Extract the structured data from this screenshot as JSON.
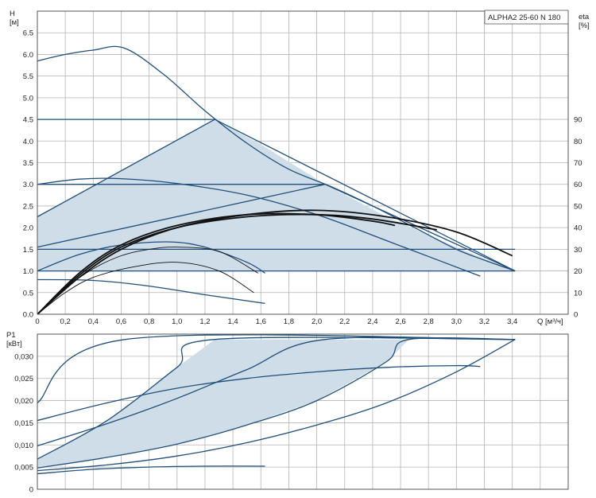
{
  "chart_data": [
    {
      "type": "line",
      "title_box": "ALPHA2 25-60 N 180",
      "ylabel_top": "H",
      "yunit": "[м]",
      "ylabel_right_top": "eta",
      "yunit_right": "[%]",
      "xlabel": "Q [м³/ч]",
      "xlim": [
        0,
        3.8
      ],
      "ylim": [
        0,
        7.0
      ],
      "y2lim": [
        0,
        140
      ],
      "x_ticks": [
        "0",
        "0,2",
        "0,4",
        "0,6",
        "0,8",
        "1,0",
        "1,2",
        "1,4",
        "1,6",
        "1,8",
        "2,0",
        "2,2",
        "2,4",
        "2,6",
        "2,8",
        "3,0",
        "3,2",
        "3,4"
      ],
      "y_ticks": [
        "0.0",
        "0.5",
        "1.0",
        "1.5",
        "2.0",
        "2.5",
        "3.0",
        "3.5",
        "4.0",
        "4.5",
        "5.0",
        "5.5",
        "6.0",
        "6.5"
      ],
      "y2_ticks": [
        "0",
        "10",
        "20",
        "30",
        "40",
        "50",
        "60",
        "70",
        "80",
        "90"
      ],
      "series": [
        {
          "role": "max-curve",
          "x": [
            0,
            0.2,
            0.4,
            0.62,
            0.9,
            1.2,
            1.5,
            1.8,
            2.1,
            2.4,
            2.7,
            3.0,
            3.2,
            3.42
          ],
          "y": [
            5.85,
            6.0,
            6.1,
            6.15,
            5.55,
            4.7,
            3.95,
            3.35,
            2.95,
            2.5,
            2.0,
            1.5,
            1.25,
            1.0
          ]
        },
        {
          "role": "constant-pressure",
          "x": [
            0,
            1.27
          ],
          "y": [
            4.5,
            4.5
          ]
        },
        {
          "role": "constant-pressure",
          "x": [
            0,
            2.06
          ],
          "y": [
            3.0,
            3.0
          ]
        },
        {
          "role": "constant-pressure",
          "x": [
            0,
            3.42
          ],
          "y": [
            1.5,
            1.5
          ]
        },
        {
          "role": "proportional-pressure",
          "x": [
            0,
            1.27,
            3.42
          ],
          "y": [
            2.25,
            4.5,
            1.0
          ]
        },
        {
          "role": "proportional-pressure",
          "x": [
            0,
            2.06,
            3.42
          ],
          "y": [
            1.55,
            3.0,
            1.0
          ]
        },
        {
          "role": "proportional-pressure",
          "x": [
            0,
            3.42
          ],
          "y": [
            1.0,
            1.0
          ]
        },
        {
          "role": "speed-curve",
          "x": [
            0,
            0.3,
            0.6,
            1.0,
            1.5,
            2.0,
            2.5,
            3.17
          ],
          "y": [
            3.0,
            3.12,
            3.13,
            3.02,
            2.75,
            2.3,
            1.7,
            0.88
          ]
        },
        {
          "role": "speed-curve",
          "x": [
            0,
            0.3,
            0.6,
            0.95,
            1.2,
            1.5,
            1.63
          ],
          "y": [
            1.0,
            1.38,
            1.6,
            1.67,
            1.55,
            1.2,
            0.95
          ]
        },
        {
          "role": "speed-curve",
          "x": [
            0,
            0.4,
            0.8,
            1.2,
            1.63
          ],
          "y": [
            0.8,
            0.78,
            0.65,
            0.45,
            0.25
          ]
        },
        {
          "role": "efficiency",
          "x": [
            0,
            0.3,
            0.6,
            1.0,
            1.5,
            2.0,
            2.5,
            3.0,
            3.4
          ],
          "y": [
            0,
            17,
            30,
            40,
            46,
            48,
            45,
            38,
            27
          ]
        },
        {
          "role": "efficiency",
          "x": [
            0,
            0.3,
            0.6,
            1.0,
            1.5,
            2.0,
            2.4,
            2.86
          ],
          "y": [
            0,
            18,
            31,
            40,
            45,
            46,
            44,
            39
          ]
        },
        {
          "role": "efficiency",
          "x": [
            0,
            0.3,
            0.6,
            1.0,
            1.5,
            2.0,
            2.4,
            2.56
          ],
          "y": [
            0,
            19,
            32,
            41,
            46,
            46,
            43,
            41
          ]
        },
        {
          "role": "efficiency",
          "x": [
            0,
            0.2,
            0.4,
            0.6,
            0.8,
            1.0,
            1.3,
            1.58
          ],
          "y": [
            0,
            12,
            21,
            27,
            30,
            31,
            29,
            19
          ]
        },
        {
          "role": "efficiency",
          "x": [
            0,
            0.2,
            0.4,
            0.7,
            1.0,
            1.3,
            1.55
          ],
          "y": [
            0,
            10,
            17,
            22,
            24,
            20,
            10
          ]
        }
      ]
    },
    {
      "type": "line",
      "ylabel_top": "P1",
      "yunit": "[кВт]",
      "xlim": [
        0,
        3.8
      ],
      "ylim": [
        0,
        0.035
      ],
      "y_ticks": [
        "0",
        "0,005",
        "0,010",
        "0,015",
        "0,020",
        "0,025",
        "0,030"
      ],
      "series": [
        {
          "role": "max-curve",
          "x": [
            0,
            0.63,
            3.42
          ],
          "y": [
            0.0195,
            0.0338,
            0.0338
          ]
        },
        {
          "role": "speed-curve",
          "x": [
            0,
            0.5,
            1.0,
            1.5,
            2.0,
            2.5,
            3.0,
            3.17
          ],
          "y": [
            0.0155,
            0.0195,
            0.0228,
            0.025,
            0.0265,
            0.0275,
            0.0279,
            0.0277
          ]
        },
        {
          "role": "pressure-curve",
          "x": [
            0,
            0.5,
            1.0,
            1.27,
            3.42
          ],
          "y": [
            0.0068,
            0.0155,
            0.0275,
            0.0338,
            0.0338
          ]
        },
        {
          "role": "pressure-curve",
          "x": [
            0,
            0.5,
            1.0,
            1.5,
            2.06,
            3.42
          ],
          "y": [
            0.0098,
            0.0148,
            0.0205,
            0.027,
            0.0338,
            0.0338
          ]
        },
        {
          "role": "pressure-curve",
          "x": [
            0,
            0.5,
            1.0,
            1.5,
            2.0,
            2.5,
            2.66,
            3.42
          ],
          "y": [
            0.0048,
            0.0072,
            0.0102,
            0.0145,
            0.02,
            0.0288,
            0.0338,
            0.0338
          ]
        },
        {
          "role": "pressure-curve",
          "x": [
            0,
            0.5,
            1.0,
            1.5,
            2.0,
            2.5,
            3.0,
            3.42
          ],
          "y": [
            0.0042,
            0.0055,
            0.0075,
            0.0105,
            0.0145,
            0.0195,
            0.0265,
            0.0338
          ]
        },
        {
          "role": "speed-curve",
          "x": [
            0,
            0.4,
            0.8,
            1.2,
            1.63
          ],
          "y": [
            0.0035,
            0.0045,
            0.005,
            0.0052,
            0.0052
          ]
        }
      ]
    }
  ]
}
